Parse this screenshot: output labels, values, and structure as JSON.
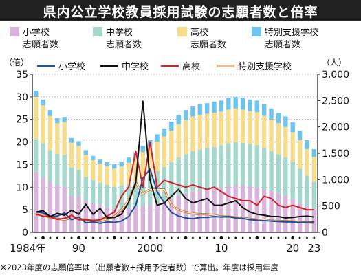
{
  "title": "県内公立学校教員採用試験の志願者数と倍率",
  "footnote": "※2023年度の志願倍率は（出願者数÷採用予定者数）で算出。年度は採用年度",
  "chart_data": {
    "type": "bar+line",
    "x_start": 1984,
    "x_end": 2023,
    "x_tick_labels": [
      {
        "year": 1984,
        "label": "1984年"
      },
      {
        "year": 1990,
        "label": "90"
      },
      {
        "year": 2000,
        "label": "2000"
      },
      {
        "year": 2010,
        "label": "10"
      },
      {
        "year": 2020,
        "label": "20"
      },
      {
        "year": 2023,
        "label": "23"
      }
    ],
    "left_axis": {
      "unit": "（倍）",
      "range": [
        0,
        35
      ],
      "ticks": [
        0,
        5,
        10,
        15,
        20,
        25,
        30,
        35
      ]
    },
    "right_axis": {
      "unit": "（人）",
      "range": [
        0,
        3000
      ],
      "ticks": [
        0,
        500,
        1000,
        1500,
        2000,
        2500,
        3000
      ],
      "tick_labels": [
        "0",
        "500",
        "1,000",
        "1,500",
        "2,000",
        "2,500",
        "3,000"
      ]
    },
    "bar_legend": [
      {
        "key": "elem",
        "line1": "小学校",
        "line2": "志願者数",
        "color": "#d8b4dc"
      },
      {
        "key": "mid",
        "line1": "中学校",
        "line2": "志願者数",
        "color": "#a5d8cc"
      },
      {
        "key": "high",
        "line1": "高校",
        "line2": "志願者数",
        "color": "#f7dc8b"
      },
      {
        "key": "sped",
        "line1": "特別支援学校",
        "line2": "志願者数",
        "color": "#6ec4ec"
      }
    ],
    "line_legend": [
      {
        "key": "elem",
        "label": "小学校",
        "color": "#1f4e9a"
      },
      {
        "key": "mid",
        "label": "中学校",
        "color": "#111111"
      },
      {
        "key": "high",
        "label": "高校",
        "color": "#d0202a"
      },
      {
        "key": "sped",
        "label": "特別支援学校",
        "color": "#c87a30"
      }
    ],
    "applicants_stacked": {
      "elem": [
        1150,
        1050,
        960,
        900,
        870,
        700,
        690,
        600,
        560,
        520,
        480,
        450,
        450,
        460,
        480,
        500,
        520,
        560,
        600,
        650,
        700,
        740,
        780,
        800,
        820,
        830,
        850,
        880,
        900,
        900,
        880,
        860,
        820,
        780,
        740,
        700,
        640,
        560,
        500,
        440
      ],
      "mid": [
        620,
        640,
        600,
        590,
        600,
        530,
        500,
        460,
        430,
        420,
        420,
        420,
        440,
        460,
        480,
        520,
        560,
        600,
        640,
        680,
        720,
        740,
        760,
        770,
        780,
        790,
        800,
        810,
        810,
        800,
        800,
        800,
        780,
        760,
        740,
        720,
        700,
        650,
        580,
        520
      ],
      "high": [
        800,
        720,
        650,
        580,
        620,
        470,
        450,
        410,
        380,
        360,
        350,
        340,
        360,
        400,
        450,
        500,
        540,
        560,
        580,
        600,
        630,
        650,
        660,
        660,
        650,
        650,
        640,
        640,
        640,
        630,
        620,
        620,
        610,
        600,
        590,
        580,
        560,
        540,
        500,
        470
      ],
      "sped": [
        120,
        110,
        110,
        100,
        100,
        90,
        90,
        90,
        80,
        80,
        80,
        80,
        90,
        100,
        110,
        120,
        130,
        140,
        150,
        170,
        180,
        190,
        200,
        200,
        200,
        210,
        210,
        220,
        220,
        220,
        220,
        220,
        220,
        210,
        200,
        200,
        190,
        180,
        170,
        150
      ]
    },
    "ratio_lines": {
      "elem": [
        4.5,
        4.3,
        3.5,
        3.6,
        4.3,
        2.8,
        3.4,
        2.1,
        2.3,
        2.0,
        2.3,
        2.2,
        2.5,
        3.5,
        6.0,
        12.0,
        14.0,
        9.0,
        6.5,
        4.4,
        3.6,
        3.2,
        3.0,
        3.3,
        3.3,
        3.5,
        3.4,
        3.5,
        3.2,
        3.1,
        2.8,
        2.7,
        2.6,
        2.5,
        2.4,
        2.3,
        2.3,
        2.2,
        2.2,
        2.3
      ],
      "mid": [
        4.5,
        4.8,
        3.5,
        4.2,
        3.8,
        4.9,
        4.0,
        6.2,
        4.0,
        5.3,
        3.2,
        3.3,
        4.0,
        6.7,
        11.0,
        29.0,
        11.5,
        6.0,
        6.5,
        8.0,
        9.5,
        7.5,
        6.5,
        7.0,
        7.5,
        6.0,
        6.0,
        6.5,
        7.0,
        5.5,
        4.5,
        4.0,
        3.8,
        3.5,
        3.5,
        3.2,
        3.3,
        3.5,
        3.6,
        3.4
      ],
      "high": [
        4.0,
        3.6,
        3.4,
        2.9,
        3.1,
        3.8,
        2.8,
        2.8,
        2.6,
        2.8,
        3.6,
        4.5,
        8.0,
        10.0,
        18.0,
        10.0,
        20.0,
        10.0,
        11.5,
        11.0,
        10.5,
        10.0,
        10.5,
        10.0,
        9.5,
        10.0,
        9.0,
        8.0,
        7.5,
        7.0,
        7.0,
        6.0,
        8.0,
        7.5,
        6.0,
        5.5,
        6.0,
        5.5,
        5.0,
        5.0
      ],
      "sped": [
        4.0,
        3.8,
        3.3,
        3.0,
        2.8,
        3.2,
        3.0,
        2.8,
        2.6,
        2.5,
        3.0,
        3.5,
        5.0,
        7.0,
        11.0,
        8.5,
        9.5,
        9.5,
        9.5,
        6.0,
        5.0,
        4.5,
        4.2,
        4.0,
        4.0,
        3.8,
        3.5,
        3.5,
        3.3,
        3.2,
        3.0,
        2.8,
        2.8,
        2.6,
        2.5,
        2.5,
        2.4,
        2.3,
        2.2,
        2.1
      ]
    },
    "colors": {
      "axis": "#111111",
      "grid": "#999999",
      "background": "#ffffff",
      "title_bar": "#222222"
    }
  }
}
